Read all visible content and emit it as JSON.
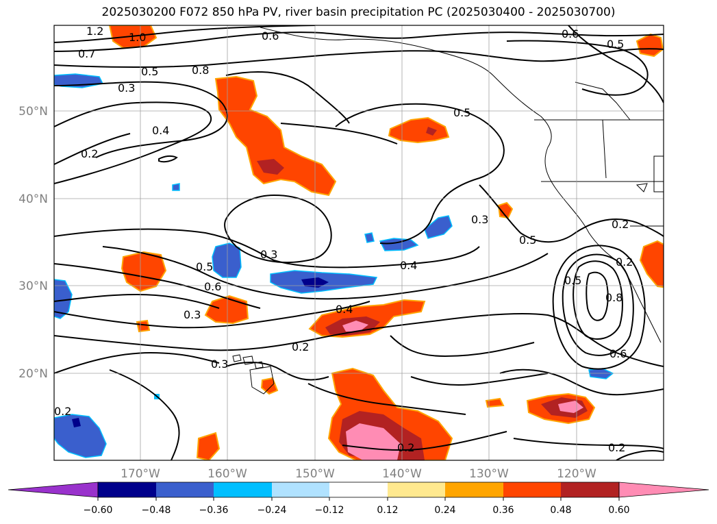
{
  "title": "2025030200 F072 850 hPa PV, river basin precipitation PC (2025030400 - 2025030700)",
  "lat_labels": [
    "50°N",
    "40°N",
    "30°N",
    "20°N"
  ],
  "lon_labels": [
    "170°W",
    "160°W",
    "150°W",
    "140°W",
    "130°W",
    "120°W"
  ],
  "colorbar": {
    "colors": [
      "#9932cc",
      "#00008b",
      "#3a5fcd",
      "#00bfff",
      "#b0e2ff",
      "#ffffff",
      "#ffe98f",
      "#ffa500",
      "#ff4500",
      "#b22222",
      "#ff8cb4"
    ],
    "ticks": [
      "−0.60",
      "−0.48",
      "−0.36",
      "−0.24",
      "−0.12",
      "0.12",
      "0.24",
      "0.36",
      "0.48",
      "0.60"
    ]
  },
  "contour_labels": [
    "1.2",
    "1.0",
    "0.6",
    "0.7",
    "0.5",
    "0.8",
    "0.3",
    "0.4",
    "0.2",
    "0.5",
    "0.6",
    "0.5",
    "0.3",
    "0.5",
    "0.4",
    "0.3",
    "0.5",
    "0.6",
    "0.3",
    "0.4",
    "0.2",
    "0.3",
    "0.2",
    "0.2",
    "0.2",
    "0.2",
    "0.6",
    "0.8",
    "0.5",
    "0.2"
  ]
}
